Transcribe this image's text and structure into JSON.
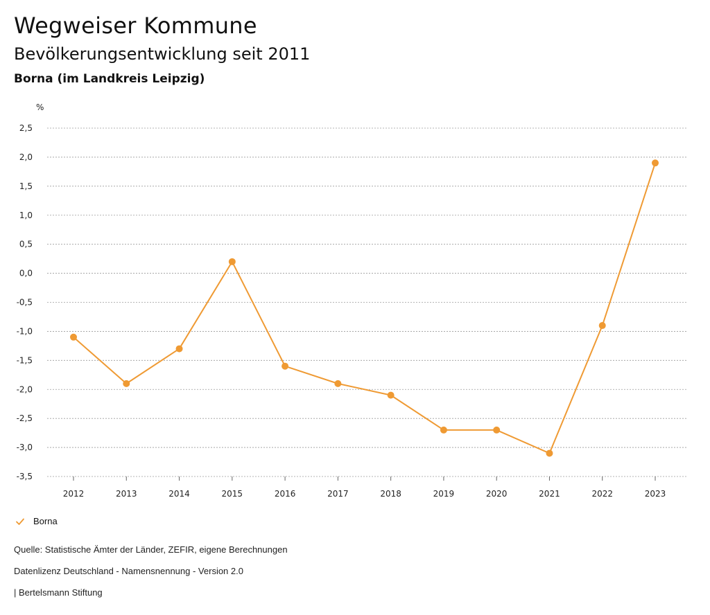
{
  "header": {
    "brand": "Wegweiser Kommune",
    "subtitle": "Bevölkerungsentwicklung seit 2011",
    "region": "Borna (im Landkreis Leipzig)"
  },
  "chart_data": {
    "type": "line",
    "ylabel": "%",
    "categories": [
      "2012",
      "2013",
      "2014",
      "2015",
      "2016",
      "2017",
      "2018",
      "2019",
      "2020",
      "2021",
      "2022",
      "2023"
    ],
    "series": [
      {
        "name": "Borna",
        "color": "#ef9a33",
        "values": [
          -1.1,
          -1.9,
          -1.3,
          0.2,
          -1.6,
          -1.9,
          -2.1,
          -2.7,
          -2.7,
          -3.1,
          -0.9,
          1.9
        ]
      }
    ],
    "ylim": [
      -3.5,
      2.5
    ],
    "yticks": [
      "2,5",
      "2,0",
      "1,5",
      "1,0",
      "0,5",
      "0,0",
      "-0,5",
      "-1,0",
      "-1,5",
      "-2,0",
      "-2,5",
      "-3,0",
      "-3,5"
    ],
    "grid": true,
    "legend_placement": "bottom-left"
  },
  "footer": {
    "source": "Quelle: Statistische Ämter der Länder, ZEFIR, eigene Berechnungen",
    "license": "Datenlizenz Deutschland - Namensnennung - Version 2.0",
    "publisher": "| Bertelsmann Stiftung"
  }
}
